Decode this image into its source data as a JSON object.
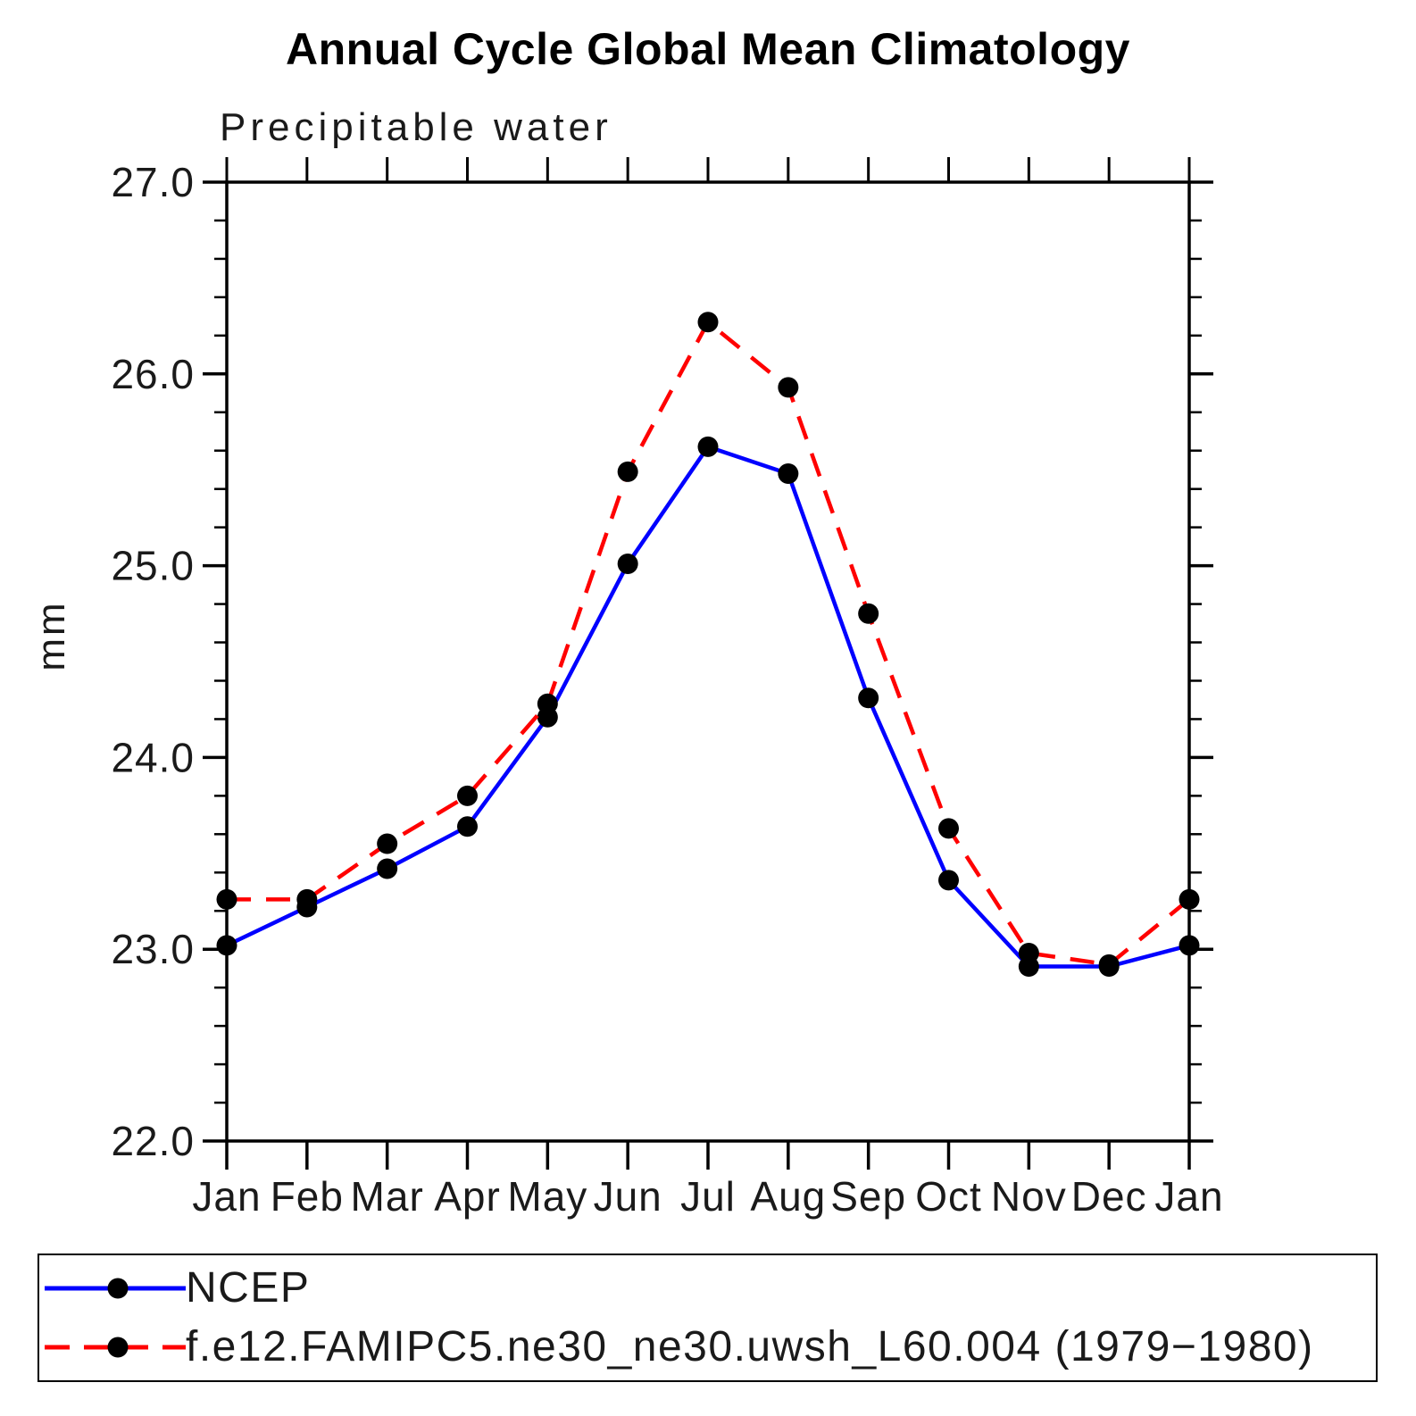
{
  "chart_data": {
    "type": "line",
    "title": "Annual Cycle Global Mean Climatology",
    "subtitle": "Precipitable water",
    "ylabel": "mm",
    "x_categories": [
      "Jan",
      "Feb",
      "Mar",
      "Apr",
      "May",
      "Jun",
      "Jul",
      "Aug",
      "Sep",
      "Oct",
      "Nov",
      "Dec",
      "Jan"
    ],
    "ylim": [
      22.0,
      27.0
    ],
    "y_tick_labels": [
      "22.0",
      "23.0",
      "24.0",
      "25.0",
      "26.0",
      "27.0"
    ],
    "y_major_step": 1.0,
    "y_minor_step": 0.2,
    "grid": false,
    "legend_position": "framed box below plot, bottom-left",
    "axis_color": "#000000",
    "series": [
      {
        "name": "NCEP",
        "line_color": "#0000ff",
        "line_style": "solid",
        "marker": "filled-circle",
        "marker_color": "#000000",
        "values": [
          23.02,
          23.22,
          23.42,
          23.64,
          24.21,
          25.01,
          25.62,
          25.48,
          24.31,
          23.36,
          22.91,
          22.91,
          23.02
        ]
      },
      {
        "name": "f.e12.FAMIPC5.ne30_ne30.uwsh_L60.004 (1979−1980)",
        "line_color": "#ff0000",
        "line_style": "dashed",
        "marker": "filled-circle",
        "marker_color": "#000000",
        "values": [
          23.26,
          23.26,
          23.55,
          23.8,
          24.28,
          25.49,
          26.27,
          25.93,
          24.75,
          23.63,
          22.98,
          22.92,
          23.26
        ]
      }
    ]
  }
}
